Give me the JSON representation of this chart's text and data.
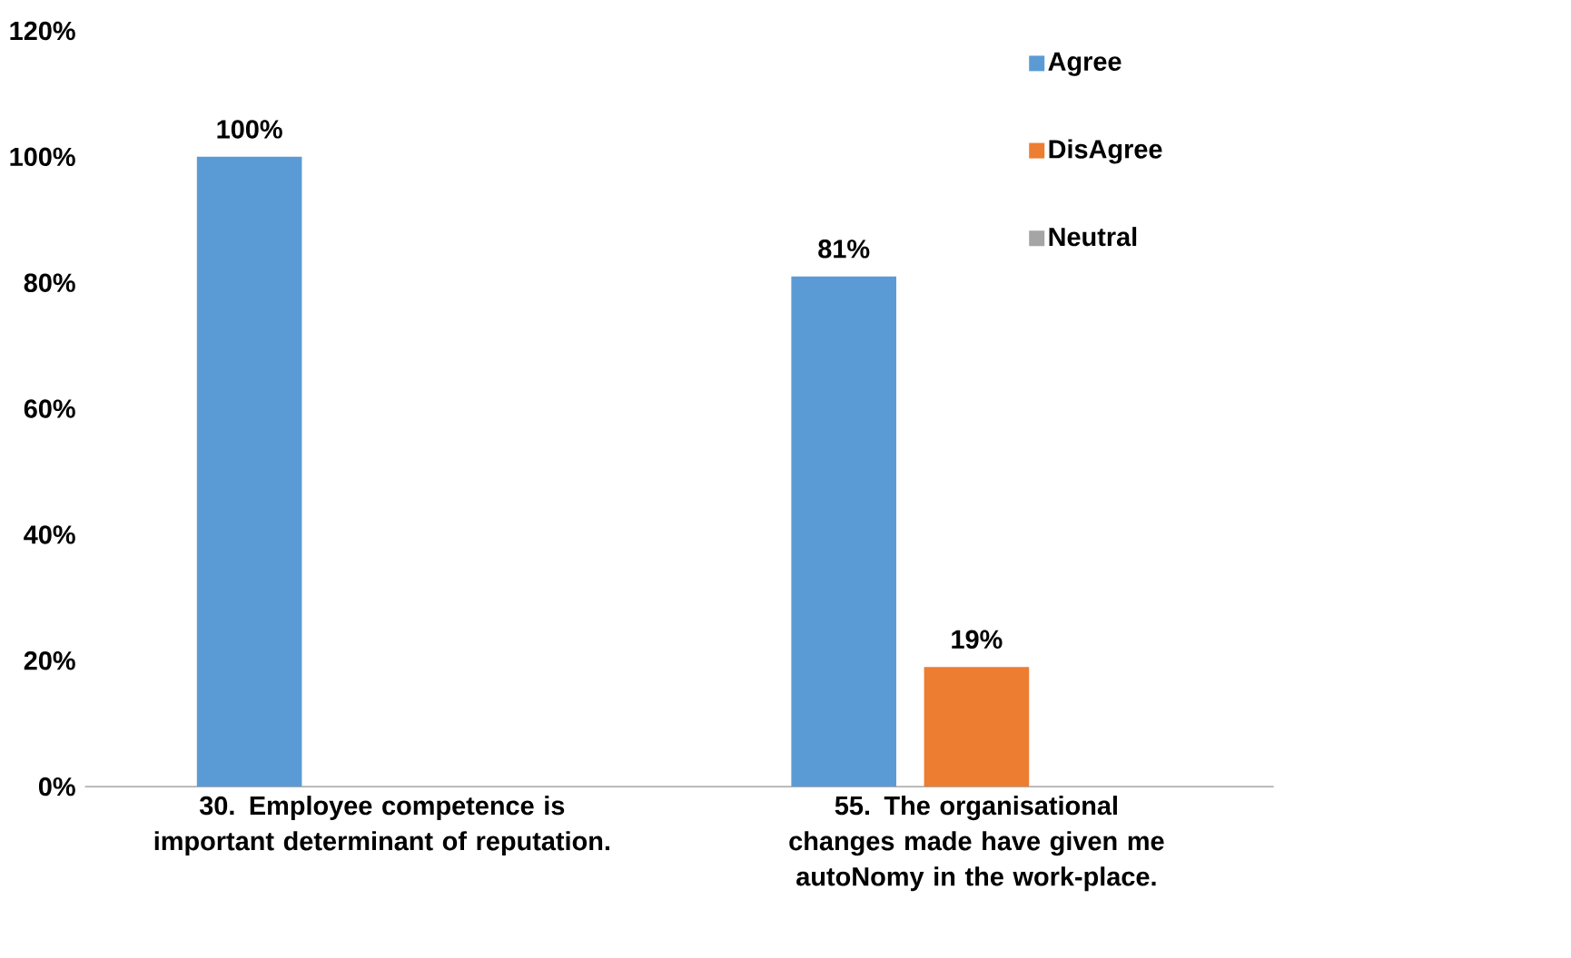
{
  "chart_data": {
    "type": "bar",
    "categories": [
      "30. Employee competence is important determinant of reputation.",
      "55. The organisational changes made have given me autoNomy in the work-place."
    ],
    "series": [
      {
        "name": "Agree",
        "color": "#5b9bd5",
        "values": [
          100,
          81
        ],
        "value_labels": [
          "100%",
          "81%"
        ]
      },
      {
        "name": "DisAgree",
        "color": "#ed7d31",
        "values": [
          null,
          19
        ],
        "value_labels": [
          null,
          "19%"
        ]
      },
      {
        "name": "Neutral",
        "color": "#a5a5a5",
        "values": [
          null,
          null
        ],
        "value_labels": [
          null,
          null
        ]
      }
    ],
    "ylim": [
      0,
      120
    ],
    "yticks": [
      {
        "value": 0,
        "label": "0%"
      },
      {
        "value": 20,
        "label": "20%"
      },
      {
        "value": 40,
        "label": "40%"
      },
      {
        "value": 60,
        "label": "60%"
      },
      {
        "value": 80,
        "label": "80%"
      },
      {
        "value": 100,
        "label": "100%"
      },
      {
        "value": 120,
        "label": "120%"
      }
    ],
    "legend": "top right"
  }
}
